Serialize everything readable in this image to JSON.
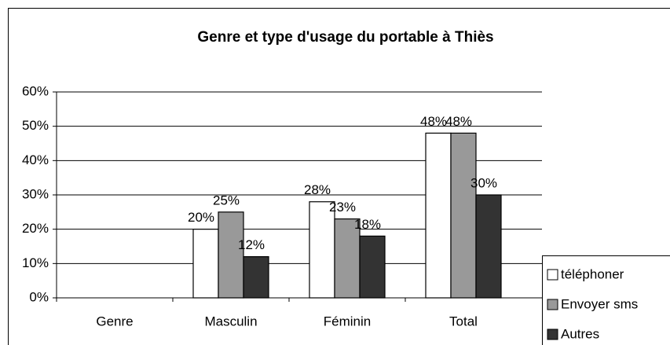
{
  "chart_data": {
    "type": "bar",
    "title": "Genre et type d'usage du portable à Thiès",
    "categories": [
      "Genre",
      "Masculin",
      "Féminin",
      "Total"
    ],
    "series": [
      {
        "name": "téléphoner",
        "color": "#ffffff",
        "values": [
          null,
          20,
          28,
          48
        ],
        "value_labels": [
          null,
          "20%",
          "28%",
          "48%"
        ]
      },
      {
        "name": "Envoyer sms",
        "color": "#999999",
        "values": [
          null,
          25,
          23,
          48
        ],
        "value_labels": [
          null,
          "25%",
          "23%",
          "48%"
        ]
      },
      {
        "name": "Autres",
        "color": "#333333",
        "values": [
          null,
          12,
          18,
          30
        ],
        "value_labels": [
          null,
          "12%",
          "18%",
          "30%"
        ]
      }
    ],
    "ylim": [
      0,
      60
    ],
    "yticks": [
      {
        "value": 0,
        "label": "0%"
      },
      {
        "value": 10,
        "label": "10%"
      },
      {
        "value": 20,
        "label": "20%"
      },
      {
        "value": 30,
        "label": "30%"
      },
      {
        "value": 40,
        "label": "40%"
      },
      {
        "value": 50,
        "label": "50%"
      },
      {
        "value": 60,
        "label": "60%"
      }
    ],
    "grid": true,
    "legend": "right"
  }
}
